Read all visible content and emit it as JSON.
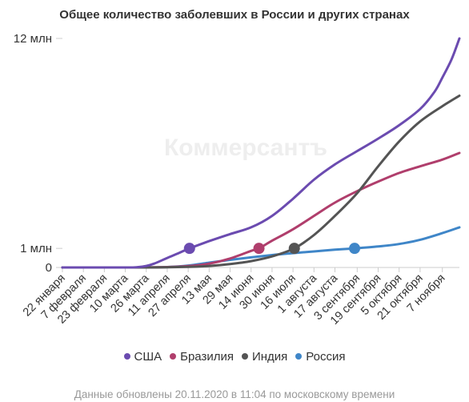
{
  "watermark": "Коммерсантъ",
  "footer": "Данные обновлены 20.11.2020 в 11:04 по московскому времени",
  "chart_data": {
    "type": "line",
    "title": "Общее количество заболевших в России и других странах",
    "xlabel": "",
    "ylabel": "",
    "ylim": [
      0,
      12
    ],
    "y_ticks": [
      {
        "value": 0,
        "label": "0"
      },
      {
        "value": 1,
        "label": "1 млн"
      },
      {
        "value": 12,
        "label": "12 млн"
      }
    ],
    "x_range": [
      "2020-01-22",
      "2020-11-20"
    ],
    "x_ticks": [
      {
        "date": "2020-01-22",
        "label": "22 января"
      },
      {
        "date": "2020-02-07",
        "label": "7 февраля"
      },
      {
        "date": "2020-02-23",
        "label": "23 февраля"
      },
      {
        "date": "2020-03-10",
        "label": "10 марта"
      },
      {
        "date": "2020-03-26",
        "label": "26 марта"
      },
      {
        "date": "2020-04-11",
        "label": "11 апреля"
      },
      {
        "date": "2020-04-27",
        "label": "27 апреля"
      },
      {
        "date": "2020-05-13",
        "label": "13 мая"
      },
      {
        "date": "2020-05-29",
        "label": "29 мая"
      },
      {
        "date": "2020-06-14",
        "label": "14 июня"
      },
      {
        "date": "2020-06-30",
        "label": "30 июня"
      },
      {
        "date": "2020-07-16",
        "label": "16 июля"
      },
      {
        "date": "2020-08-01",
        "label": "1 августа"
      },
      {
        "date": "2020-08-17",
        "label": "17 августа"
      },
      {
        "date": "2020-09-03",
        "label": "3 сентября"
      },
      {
        "date": "2020-09-19",
        "label": "19 сентября"
      },
      {
        "date": "2020-10-05",
        "label": "5 октября"
      },
      {
        "date": "2020-10-21",
        "label": "21 октября"
      },
      {
        "date": "2020-11-07",
        "label": "7 ноября"
      }
    ],
    "legend_position": "bottom",
    "grid": false,
    "series": [
      {
        "name": "США",
        "color": "#6b4bb0",
        "marker": {
          "date": "2020-04-28",
          "value": 1.0
        },
        "points": [
          [
            "2020-01-22",
            0
          ],
          [
            "2020-03-10",
            0.001
          ],
          [
            "2020-03-20",
            0.02
          ],
          [
            "2020-03-26",
            0.08
          ],
          [
            "2020-04-01",
            0.2
          ],
          [
            "2020-04-11",
            0.5
          ],
          [
            "2020-04-20",
            0.76
          ],
          [
            "2020-04-28",
            1.0
          ],
          [
            "2020-05-13",
            1.38
          ],
          [
            "2020-05-29",
            1.75
          ],
          [
            "2020-06-14",
            2.1
          ],
          [
            "2020-06-30",
            2.7
          ],
          [
            "2020-07-16",
            3.6
          ],
          [
            "2020-08-01",
            4.6
          ],
          [
            "2020-08-17",
            5.4
          ],
          [
            "2020-09-03",
            6.1
          ],
          [
            "2020-09-19",
            6.75
          ],
          [
            "2020-10-05",
            7.45
          ],
          [
            "2020-10-21",
            8.3
          ],
          [
            "2020-11-01",
            9.2
          ],
          [
            "2020-11-07",
            9.95
          ],
          [
            "2020-11-14",
            10.9
          ],
          [
            "2020-11-20",
            12.0
          ]
        ]
      },
      {
        "name": "Бразилия",
        "color": "#b03e6c",
        "marker": {
          "date": "2020-06-20",
          "value": 1.0
        },
        "points": [
          [
            "2020-01-22",
            0
          ],
          [
            "2020-03-10",
            0
          ],
          [
            "2020-04-11",
            0.02
          ],
          [
            "2020-04-27",
            0.07
          ],
          [
            "2020-05-13",
            0.2
          ],
          [
            "2020-05-29",
            0.47
          ],
          [
            "2020-06-14",
            0.87
          ],
          [
            "2020-06-20",
            1.0
          ],
          [
            "2020-06-30",
            1.4
          ],
          [
            "2020-07-16",
            2.0
          ],
          [
            "2020-08-01",
            2.7
          ],
          [
            "2020-08-17",
            3.4
          ],
          [
            "2020-09-03",
            4.0
          ],
          [
            "2020-09-19",
            4.5
          ],
          [
            "2020-10-05",
            4.95
          ],
          [
            "2020-10-21",
            5.3
          ],
          [
            "2020-11-07",
            5.65
          ],
          [
            "2020-11-20",
            6.0
          ]
        ]
      },
      {
        "name": "Индия",
        "color": "#545454",
        "marker": {
          "date": "2020-07-17",
          "value": 1.0
        },
        "points": [
          [
            "2020-01-22",
            0
          ],
          [
            "2020-03-26",
            0
          ],
          [
            "2020-04-27",
            0.03
          ],
          [
            "2020-05-13",
            0.08
          ],
          [
            "2020-05-29",
            0.18
          ],
          [
            "2020-06-14",
            0.33
          ],
          [
            "2020-06-30",
            0.58
          ],
          [
            "2020-07-17",
            1.0
          ],
          [
            "2020-08-01",
            1.7
          ],
          [
            "2020-08-17",
            2.7
          ],
          [
            "2020-09-03",
            3.9
          ],
          [
            "2020-09-19",
            5.3
          ],
          [
            "2020-10-05",
            6.6
          ],
          [
            "2020-10-21",
            7.65
          ],
          [
            "2020-11-07",
            8.45
          ],
          [
            "2020-11-20",
            9.0
          ]
        ]
      },
      {
        "name": "Россия",
        "color": "#3f86c8",
        "marker": {
          "date": "2020-09-01",
          "value": 1.0
        },
        "points": [
          [
            "2020-01-22",
            0
          ],
          [
            "2020-03-26",
            0
          ],
          [
            "2020-04-11",
            0.02
          ],
          [
            "2020-04-27",
            0.1
          ],
          [
            "2020-05-13",
            0.25
          ],
          [
            "2020-05-29",
            0.4
          ],
          [
            "2020-06-14",
            0.53
          ],
          [
            "2020-06-30",
            0.65
          ],
          [
            "2020-07-16",
            0.75
          ],
          [
            "2020-08-01",
            0.84
          ],
          [
            "2020-08-17",
            0.93
          ],
          [
            "2020-09-01",
            1.0
          ],
          [
            "2020-09-19",
            1.1
          ],
          [
            "2020-10-05",
            1.23
          ],
          [
            "2020-10-21",
            1.45
          ],
          [
            "2020-11-07",
            1.8
          ],
          [
            "2020-11-20",
            2.1
          ]
        ]
      }
    ]
  }
}
